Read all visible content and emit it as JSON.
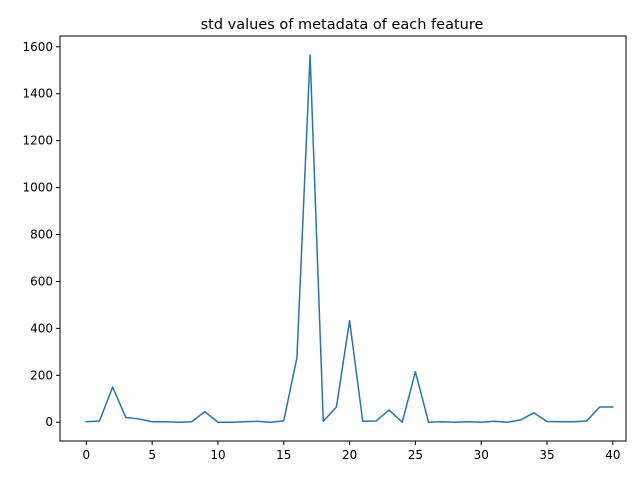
{
  "chart_data": {
    "type": "line",
    "title": "std values of metadata of each feature",
    "xlabel": "",
    "ylabel": "",
    "xlim": [
      -2,
      41
    ],
    "ylim": [
      -80,
      1646
    ],
    "xticks": [
      0,
      5,
      10,
      15,
      20,
      25,
      30,
      35,
      40
    ],
    "yticks": [
      0,
      200,
      400,
      600,
      800,
      1000,
      1200,
      1400,
      1600
    ],
    "grid": false,
    "series": [
      {
        "color": "#1f77b4",
        "x": [
          0,
          1,
          2,
          3,
          4,
          5,
          6,
          7,
          8,
          9,
          10,
          11,
          12,
          13,
          14,
          15,
          16,
          17,
          18,
          19,
          20,
          21,
          22,
          23,
          24,
          25,
          26,
          27,
          28,
          29,
          30,
          31,
          32,
          33,
          34,
          35,
          36,
          37,
          38,
          39,
          40
        ],
        "values": [
          2,
          5,
          150,
          20,
          14,
          2,
          2,
          0,
          2,
          45,
          0,
          0,
          2,
          4,
          0,
          6,
          275,
          1565,
          4,
          65,
          433,
          4,
          5,
          52,
          0,
          215,
          0,
          2,
          0,
          2,
          0,
          4,
          0,
          10,
          40,
          3,
          2,
          2,
          5,
          65,
          65
        ]
      }
    ]
  }
}
